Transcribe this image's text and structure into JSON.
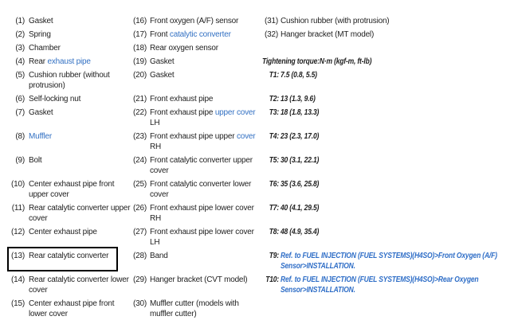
{
  "colors": {
    "text": "#1f1f1f",
    "link_blue": "#3371c3",
    "ref_blue": "#2f6ec7",
    "highlight_border": "#000000"
  },
  "torque_heading": "Tightening torque:N·m (kgf-m, ft-lb)",
  "highlighted_item": "(13)",
  "legend": {
    "rows": [
      {
        "c1": {
          "num": "(1)",
          "lines": [
            [
              {
                "t": "Gasket"
              }
            ]
          ]
        },
        "c2": {
          "num": "(16)",
          "lines": [
            [
              {
                "t": "Front oxygen (A/F) sensor"
              }
            ]
          ]
        },
        "c3": {
          "kind": "part",
          "num": "(31)",
          "lines": [
            [
              {
                "t": "Cushion rubber (with protrusion)"
              }
            ]
          ]
        }
      },
      {
        "c1": {
          "num": "(2)",
          "lines": [
            [
              {
                "t": "Spring"
              }
            ]
          ]
        },
        "c2": {
          "num": "(17)",
          "lines": [
            [
              {
                "t": "Front "
              },
              {
                "t": "catalytic converter",
                "link": true
              }
            ]
          ]
        },
        "c3": {
          "kind": "part",
          "num": "(32)",
          "lines": [
            [
              {
                "t": "Hanger bracket (MT model)"
              }
            ]
          ]
        }
      },
      {
        "c1": {
          "num": "(3)",
          "lines": [
            [
              {
                "t": "Chamber"
              }
            ]
          ]
        },
        "c2": {
          "num": "(18)",
          "lines": [
            [
              {
                "t": "Rear oxygen sensor"
              }
            ]
          ]
        },
        "c3": null
      },
      {
        "c1": {
          "num": "(4)",
          "lines": [
            [
              {
                "t": "Rear "
              },
              {
                "t": "exhaust pipe",
                "link": true
              }
            ]
          ]
        },
        "c2": {
          "num": "(19)",
          "lines": [
            [
              {
                "t": "Gasket"
              }
            ]
          ]
        },
        "c3": {
          "kind": "heading"
        }
      },
      {
        "c1": {
          "num": "(5)",
          "lines": [
            [
              {
                "t": "Cushion rubber (without"
              }
            ],
            [
              {
                "t": "protrusion)"
              }
            ]
          ]
        },
        "c2": {
          "num": "(20)",
          "lines": [
            [
              {
                "t": "Gasket"
              }
            ]
          ]
        },
        "c3": {
          "kind": "torque",
          "label": "T1:",
          "value": "7.5 (0.8, 5.5)"
        }
      },
      {
        "c1": {
          "num": "(6)",
          "lines": [
            [
              {
                "t": "Self-locking nut"
              }
            ]
          ]
        },
        "c2": {
          "num": "(21)",
          "lines": [
            [
              {
                "t": "Front exhaust pipe"
              }
            ]
          ]
        },
        "c3": {
          "kind": "torque",
          "label": "T2:",
          "value": "13 (1.3, 9.6)"
        }
      },
      {
        "c1": {
          "num": "(7)",
          "lines": [
            [
              {
                "t": "Gasket"
              }
            ]
          ]
        },
        "c2": {
          "num": "(22)",
          "lines": [
            [
              {
                "t": "Front exhaust pipe "
              },
              {
                "t": "upper cover",
                "link": true
              }
            ],
            [
              {
                "t": "LH"
              }
            ]
          ]
        },
        "c3": {
          "kind": "torque",
          "label": "T3:",
          "value": "18 (1.8, 13.3)"
        }
      },
      {
        "c1": {
          "num": "(8)",
          "lines": [
            [
              {
                "t": "Muffler",
                "link": true
              }
            ]
          ]
        },
        "c2": {
          "num": "(23)",
          "lines": [
            [
              {
                "t": "Front exhaust pipe upper "
              },
              {
                "t": "cover",
                "link": true
              }
            ],
            [
              {
                "t": "RH"
              }
            ]
          ]
        },
        "c3": {
          "kind": "torque",
          "label": "T4:",
          "value": "23 (2.3, 17.0)"
        }
      },
      {
        "c1": {
          "num": "(9)",
          "lines": [
            [
              {
                "t": "Bolt"
              }
            ]
          ]
        },
        "c2": {
          "num": "(24)",
          "lines": [
            [
              {
                "t": "Front catalytic converter upper"
              }
            ],
            [
              {
                "t": "cover"
              }
            ]
          ]
        },
        "c3": {
          "kind": "torque",
          "label": "T5:",
          "value": "30 (3.1, 22.1)"
        }
      },
      {
        "c1": {
          "num": "(10)",
          "lines": [
            [
              {
                "t": "Center exhaust pipe front"
              }
            ],
            [
              {
                "t": "upper cover"
              }
            ]
          ]
        },
        "c2": {
          "num": "(25)",
          "lines": [
            [
              {
                "t": "Front catalytic converter lower"
              }
            ],
            [
              {
                "t": "cover"
              }
            ]
          ]
        },
        "c3": {
          "kind": "torque",
          "label": "T6:",
          "value": "35 (3.6, 25.8)"
        }
      },
      {
        "c1": {
          "num": "(11)",
          "lines": [
            [
              {
                "t": "Rear catalytic converter upper"
              }
            ],
            [
              {
                "t": "cover"
              }
            ]
          ]
        },
        "c2": {
          "num": "(26)",
          "lines": [
            [
              {
                "t": "Front exhaust pipe lower cover"
              }
            ],
            [
              {
                "t": "RH"
              }
            ]
          ]
        },
        "c3": {
          "kind": "torque",
          "label": "T7:",
          "value": "40 (4.1, 29.5)"
        }
      },
      {
        "c1": {
          "num": "(12)",
          "lines": [
            [
              {
                "t": "Center exhaust pipe"
              }
            ]
          ]
        },
        "c2": {
          "num": "(27)",
          "lines": [
            [
              {
                "t": "Front exhaust pipe lower cover"
              }
            ],
            [
              {
                "t": "LH"
              }
            ]
          ]
        },
        "c3": {
          "kind": "torque",
          "label": "T8:",
          "value": "48 (4.9, 35.4)"
        }
      },
      {
        "c1": {
          "num": "(13)",
          "boxed": true,
          "lines": [
            [
              {
                "t": "Rear catalytic converter"
              }
            ]
          ]
        },
        "c2": {
          "num": "(28)",
          "lines": [
            [
              {
                "t": "Band"
              }
            ]
          ]
        },
        "c3": {
          "kind": "ref",
          "label": "T9:",
          "lines": [
            "Ref. to FUEL INJECTION (FUEL SYSTEMS)(H4SO)>Front Oxygen (A/F)",
            "Sensor>INSTALLATION."
          ]
        }
      },
      {
        "c1": {
          "num": "(14)",
          "lines": [
            [
              {
                "t": "Rear catalytic converter lower"
              }
            ],
            [
              {
                "t": "cover"
              }
            ]
          ]
        },
        "c2": {
          "num": "(29)",
          "lines": [
            [
              {
                "t": "Hanger bracket (CVT model)"
              }
            ]
          ]
        },
        "c3": {
          "kind": "ref",
          "label": "T10:",
          "lines": [
            "Ref. to FUEL INJECTION (FUEL SYSTEMS)(H4SO)>Rear Oxygen",
            "Sensor>INSTALLATION."
          ]
        }
      },
      {
        "c1": {
          "num": "(15)",
          "lines": [
            [
              {
                "t": "Center exhaust pipe front"
              }
            ],
            [
              {
                "t": "lower cover"
              }
            ]
          ]
        },
        "c2": {
          "num": "(30)",
          "lines": [
            [
              {
                "t": "Muffler cutter (models with"
              }
            ],
            [
              {
                "t": "muffler cutter)"
              }
            ]
          ]
        },
        "c3": null
      }
    ]
  }
}
